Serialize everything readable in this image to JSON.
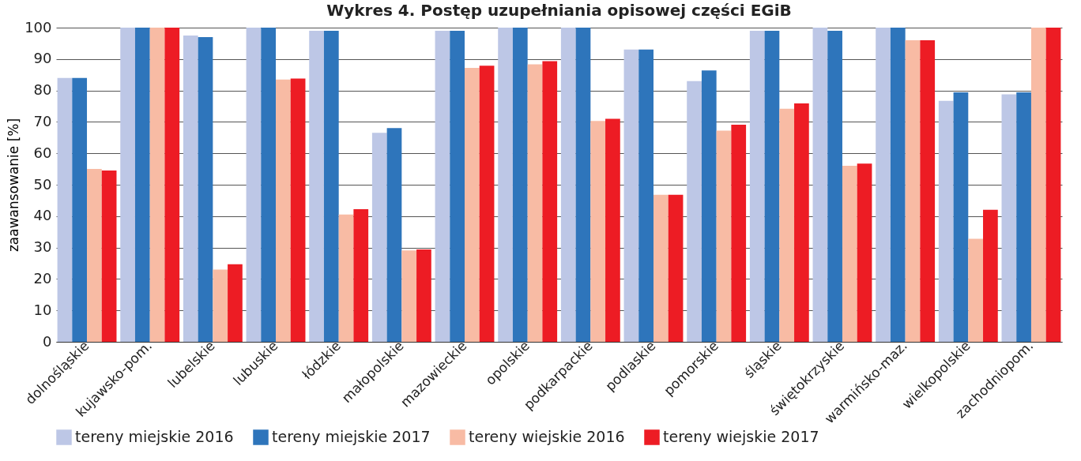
{
  "chart_data": {
    "type": "bar",
    "title": "Wykres 4. Postęp uzupełniania opisowej części EGiB",
    "ylabel": "zaawansowanie [%]",
    "categories": [
      "dolnośląskie",
      "kujawsko-pom.",
      "lubelskie",
      "lubuskie",
      "łódzkie",
      "małopolskie",
      "mazowieckie",
      "opolskie",
      "podkarpackie",
      "podlaskie",
      "pomorskie",
      "śląskie",
      "świętokrzyskie",
      "warmińsko-maz.",
      "wielkopolskie",
      "zachodniopom."
    ],
    "series": [
      {
        "name": "tereny miejskie 2016",
        "color": "#bdc7e6",
        "values": [
          84,
          100,
          97.5,
          100,
          99,
          66.5,
          99,
          100,
          100,
          93,
          83,
          99,
          100,
          100,
          76.7,
          78.8
        ]
      },
      {
        "name": "tereny miejskie 2017",
        "color": "#2e75bb",
        "values": [
          84,
          100,
          97,
          100,
          99,
          68,
          99,
          100,
          100,
          93,
          86.4,
          99,
          99,
          100,
          79.4,
          79.4
        ]
      },
      {
        "name": "tereny wiejskie 2016",
        "color": "#f8bba4",
        "values": [
          55,
          100,
          23,
          83.5,
          40.5,
          29.1,
          87.2,
          88.3,
          70.3,
          46.8,
          67.2,
          74.2,
          56,
          96,
          32.8,
          100
        ]
      },
      {
        "name": "tereny wiejskie 2017",
        "color": "#ed1c24",
        "values": [
          54.5,
          100,
          24.7,
          83.8,
          42.2,
          29.4,
          87.9,
          89.3,
          71,
          46.8,
          69.1,
          75.9,
          56.7,
          96,
          42,
          100
        ]
      }
    ],
    "ylim": [
      0,
      100
    ],
    "yticks": [
      0,
      10,
      20,
      30,
      40,
      50,
      60,
      70,
      80,
      90,
      100
    ],
    "grid": "y",
    "legend": "bottom"
  }
}
